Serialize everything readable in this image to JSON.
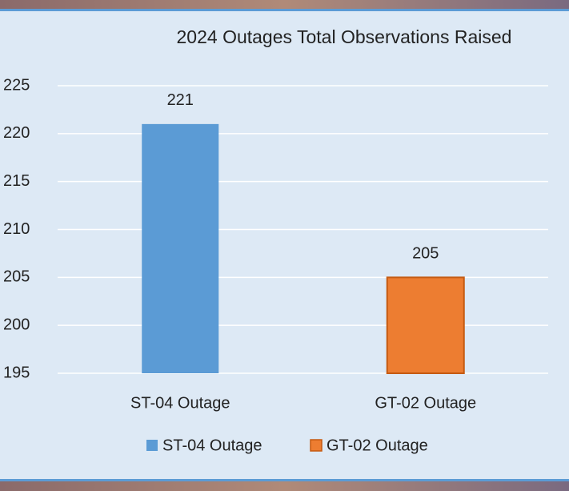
{
  "chart_data": {
    "type": "bar",
    "title": "2024 Outages Total Observations Raised",
    "categories": [
      "ST-04 Outage",
      "GT-02 Outage"
    ],
    "values": [
      221,
      205
    ],
    "colors": [
      "#5b9bd5",
      "#ed7d31"
    ],
    "ylim": [
      195,
      225
    ],
    "yticks": [
      195,
      200,
      205,
      210,
      215,
      220,
      225
    ],
    "grid": true,
    "legend": "bottom"
  }
}
